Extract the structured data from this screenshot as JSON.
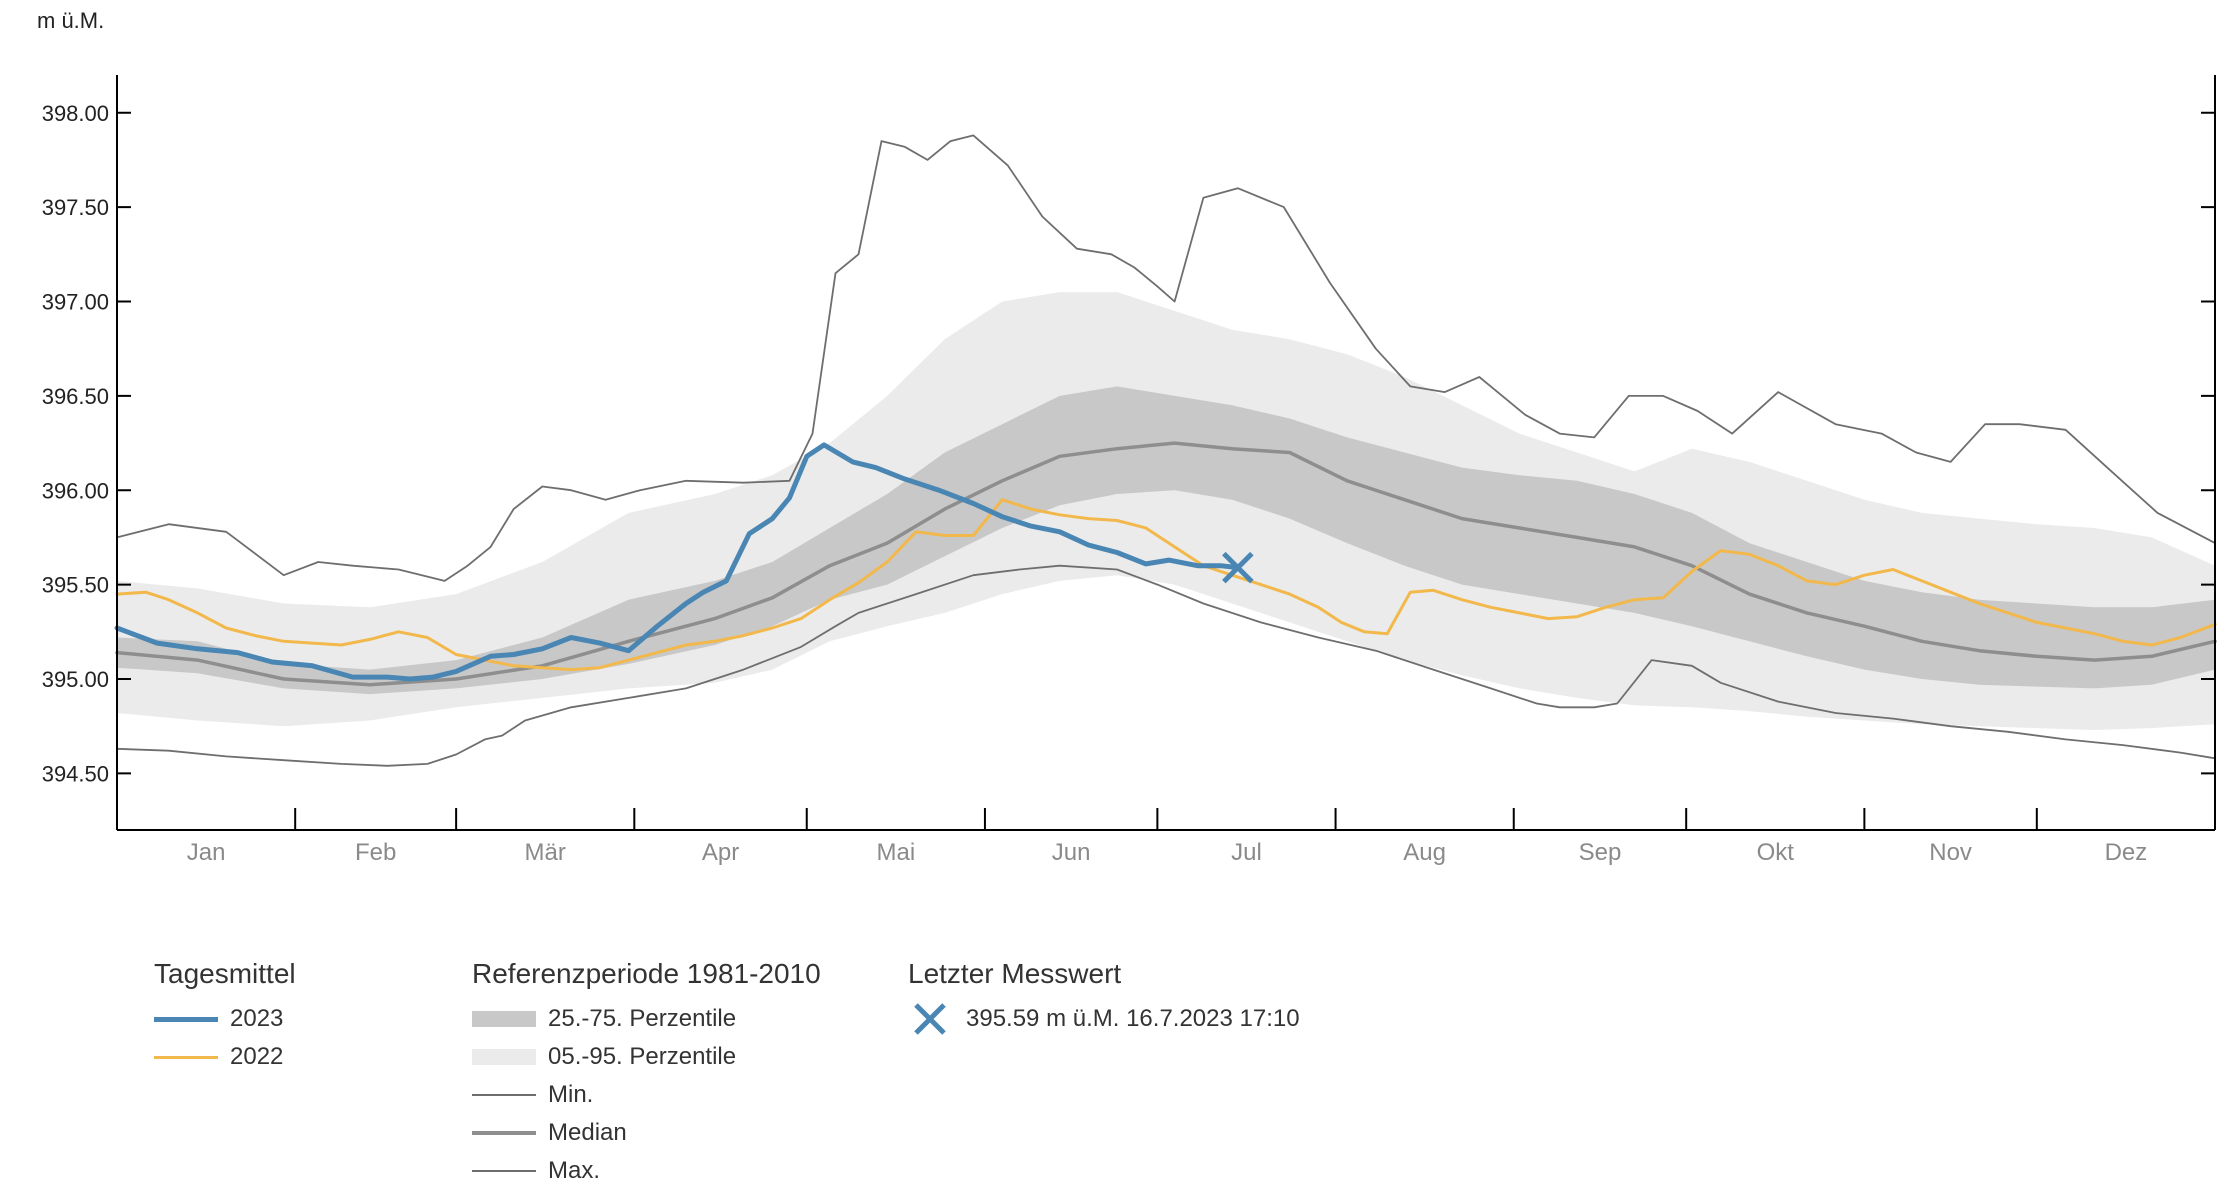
{
  "unit_label": "m ü.M.",
  "chart_data": {
    "type": "line",
    "ylabel": "m ü.M.",
    "ylim": [
      394.2,
      398.2
    ],
    "yticks": [
      "398.00",
      "397.50",
      "397.00",
      "396.50",
      "396.00",
      "395.50",
      "395.00",
      "394.50"
    ],
    "ytick_values": [
      398.0,
      397.5,
      397.0,
      396.5,
      396.0,
      395.5,
      395.0,
      394.5
    ],
    "x_unit": "day of year",
    "xlim": [
      1,
      366
    ],
    "months": [
      "Jan",
      "Feb",
      "Mär",
      "Apr",
      "Mai",
      "Jun",
      "Jul",
      "Aug",
      "Sep",
      "Okt",
      "Nov",
      "Dez"
    ],
    "month_starts": [
      1,
      32,
      60,
      91,
      121,
      152,
      182,
      213,
      244,
      274,
      305,
      335,
      366
    ],
    "grid": false,
    "series": [
      {
        "name": "2023",
        "role": "line",
        "color": "#4a86b3",
        "x": [
          1,
          8,
          15,
          22,
          28,
          35,
          42,
          48,
          52,
          56,
          60,
          66,
          70,
          75,
          80,
          85,
          90,
          95,
          100,
          103,
          107,
          111,
          115,
          118,
          121,
          124,
          129,
          133,
          138,
          144,
          150,
          155,
          160,
          165,
          170,
          175,
          180,
          184,
          189,
          193,
          196
        ],
        "y": [
          395.27,
          395.19,
          395.16,
          395.14,
          395.09,
          395.07,
          395.01,
          395.01,
          395.0,
          395.01,
          395.04,
          395.12,
          395.13,
          395.16,
          395.22,
          395.19,
          395.15,
          395.28,
          395.4,
          395.46,
          395.52,
          395.77,
          395.85,
          395.96,
          396.18,
          396.24,
          396.15,
          396.12,
          396.06,
          396.0,
          395.93,
          395.86,
          395.81,
          395.78,
          395.71,
          395.67,
          395.61,
          395.63,
          395.6,
          395.6,
          395.59
        ]
      },
      {
        "name": "2022",
        "role": "line",
        "color": "#f2b84b",
        "x": [
          1,
          6,
          10,
          15,
          20,
          25,
          30,
          35,
          40,
          45,
          50,
          55,
          60,
          65,
          70,
          75,
          80,
          85,
          90,
          95,
          100,
          105,
          110,
          115,
          120,
          125,
          130,
          135,
          140,
          145,
          150,
          155,
          160,
          165,
          170,
          175,
          180,
          185,
          190,
          195,
          200,
          205,
          210,
          214,
          218,
          222,
          226,
          230,
          235,
          240,
          245,
          250,
          255,
          260,
          265,
          270,
          275,
          280,
          285,
          290,
          295,
          300,
          305,
          310,
          315,
          320,
          325,
          330,
          335,
          340,
          345,
          350,
          355,
          360,
          366
        ],
        "y": [
          395.45,
          395.46,
          395.42,
          395.35,
          395.27,
          395.23,
          395.2,
          395.19,
          395.18,
          395.21,
          395.25,
          395.22,
          395.13,
          395.1,
          395.07,
          395.06,
          395.05,
          395.06,
          395.1,
          395.14,
          395.18,
          395.2,
          395.23,
          395.27,
          395.32,
          395.42,
          395.51,
          395.62,
          395.78,
          395.76,
          395.76,
          395.95,
          395.9,
          395.87,
          395.85,
          395.84,
          395.8,
          395.7,
          395.6,
          395.55,
          395.5,
          395.45,
          395.38,
          395.3,
          395.25,
          395.24,
          395.46,
          395.47,
          395.42,
          395.38,
          395.35,
          395.32,
          395.33,
          395.38,
          395.42,
          395.43,
          395.57,
          395.68,
          395.66,
          395.6,
          395.52,
          395.5,
          395.55,
          395.58,
          395.52,
          395.46,
          395.4,
          395.35,
          395.3,
          395.27,
          395.24,
          395.2,
          395.18,
          395.22,
          395.29
        ]
      },
      {
        "name": "Median",
        "role": "line",
        "color": "#8e8e8e",
        "x": [
          1,
          15,
          30,
          45,
          60,
          75,
          90,
          105,
          115,
          125,
          135,
          145,
          155,
          165,
          175,
          185,
          195,
          205,
          215,
          225,
          235,
          245,
          255,
          265,
          275,
          285,
          295,
          305,
          315,
          325,
          335,
          345,
          355,
          366
        ],
        "y": [
          395.14,
          395.1,
          395.0,
          394.97,
          395.0,
          395.07,
          395.2,
          395.32,
          395.43,
          395.6,
          395.72,
          395.9,
          396.05,
          396.18,
          396.22,
          396.25,
          396.22,
          396.2,
          396.05,
          395.95,
          395.85,
          395.8,
          395.75,
          395.7,
          395.6,
          395.45,
          395.35,
          395.28,
          395.2,
          395.15,
          395.12,
          395.1,
          395.12,
          395.2
        ]
      },
      {
        "name": "Min.",
        "role": "line",
        "color": "#6e6e6e",
        "x": [
          1,
          10,
          20,
          30,
          40,
          48,
          55,
          60,
          65,
          68,
          72,
          80,
          90,
          100,
          110,
          120,
          126,
          130,
          140,
          150,
          158,
          165,
          175,
          182,
          190,
          200,
          210,
          220,
          230,
          240,
          248,
          252,
          258,
          262,
          268,
          275,
          280,
          290,
          300,
          310,
          320,
          330,
          340,
          350,
          360,
          366
        ],
        "y": [
          394.63,
          394.62,
          394.59,
          394.57,
          394.55,
          394.54,
          394.55,
          394.6,
          394.68,
          394.7,
          394.78,
          394.85,
          394.9,
          394.95,
          395.05,
          395.17,
          395.28,
          395.35,
          395.45,
          395.55,
          395.58,
          395.6,
          395.58,
          395.5,
          395.4,
          395.3,
          395.22,
          395.15,
          395.05,
          394.95,
          394.87,
          394.85,
          394.85,
          394.87,
          395.1,
          395.07,
          394.98,
          394.88,
          394.82,
          394.79,
          394.75,
          394.72,
          394.68,
          394.65,
          394.61,
          394.58
        ]
      },
      {
        "name": "Max.",
        "role": "line",
        "color": "#6e6e6e",
        "x": [
          1,
          10,
          20,
          30,
          36,
          42,
          50,
          58,
          62,
          66,
          70,
          75,
          80,
          86,
          92,
          100,
          110,
          118,
          122,
          126,
          130,
          134,
          138,
          142,
          146,
          150,
          156,
          162,
          168,
          174,
          178,
          182,
          185,
          190,
          196,
          204,
          212,
          220,
          226,
          232,
          238,
          246,
          252,
          258,
          264,
          270,
          276,
          282,
          290,
          300,
          308,
          314,
          320,
          326,
          332,
          340,
          348,
          356,
          366
        ],
        "y": [
          395.75,
          395.82,
          395.78,
          395.55,
          395.62,
          395.6,
          395.58,
          395.52,
          395.6,
          395.7,
          395.9,
          396.02,
          396.0,
          395.95,
          396.0,
          396.05,
          396.04,
          396.05,
          396.3,
          397.15,
          397.25,
          397.85,
          397.82,
          397.75,
          397.85,
          397.88,
          397.72,
          397.45,
          397.28,
          397.25,
          397.18,
          397.08,
          397.0,
          397.55,
          397.6,
          397.5,
          397.1,
          396.75,
          396.55,
          396.52,
          396.6,
          396.4,
          396.3,
          396.28,
          396.5,
          396.5,
          396.42,
          396.3,
          396.52,
          396.35,
          396.3,
          396.2,
          396.15,
          396.35,
          396.35,
          396.32,
          396.1,
          395.88,
          395.72
        ]
      },
      {
        "name": "25.-75. Perzentile",
        "role": "band",
        "color": "#c8c8c8",
        "x": [
          1,
          15,
          30,
          45,
          60,
          75,
          90,
          105,
          115,
          125,
          135,
          145,
          155,
          165,
          175,
          185,
          195,
          205,
          215,
          225,
          235,
          245,
          255,
          265,
          275,
          285,
          295,
          305,
          315,
          325,
          335,
          345,
          355,
          366
        ],
        "lower": [
          395.06,
          395.03,
          394.95,
          394.92,
          394.95,
          395.0,
          395.08,
          395.18,
          395.28,
          395.42,
          395.5,
          395.65,
          395.8,
          395.92,
          395.98,
          396.0,
          395.95,
          395.85,
          395.72,
          395.6,
          395.5,
          395.45,
          395.4,
          395.35,
          395.28,
          395.2,
          395.12,
          395.05,
          395.0,
          394.97,
          394.96,
          394.95,
          394.97,
          395.05
        ],
        "upper": [
          395.22,
          395.2,
          395.08,
          395.05,
          395.1,
          395.22,
          395.42,
          395.52,
          395.62,
          395.8,
          395.98,
          396.2,
          396.35,
          396.5,
          396.55,
          396.5,
          396.45,
          396.38,
          396.28,
          396.2,
          396.12,
          396.08,
          396.05,
          395.98,
          395.88,
          395.72,
          395.62,
          395.52,
          395.46,
          395.42,
          395.4,
          395.38,
          395.38,
          395.42
        ]
      },
      {
        "name": "05.-95. Perzentile",
        "role": "band",
        "color": "#ebebeb",
        "x": [
          1,
          15,
          30,
          45,
          60,
          75,
          90,
          105,
          115,
          125,
          135,
          145,
          155,
          165,
          175,
          185,
          195,
          205,
          215,
          225,
          235,
          245,
          255,
          265,
          275,
          285,
          295,
          305,
          315,
          325,
          335,
          345,
          355,
          366
        ],
        "lower": [
          394.82,
          394.78,
          394.75,
          394.78,
          394.85,
          394.9,
          394.95,
          394.98,
          395.05,
          395.2,
          395.28,
          395.35,
          395.45,
          395.52,
          395.55,
          395.5,
          395.4,
          395.3,
          395.2,
          395.1,
          395.02,
          394.95,
          394.9,
          394.86,
          394.85,
          394.83,
          394.8,
          394.78,
          394.76,
          394.75,
          394.74,
          394.73,
          394.74,
          394.76
        ],
        "upper": [
          395.52,
          395.48,
          395.4,
          395.38,
          395.45,
          395.62,
          395.88,
          395.98,
          396.08,
          396.25,
          396.5,
          396.8,
          397.0,
          397.05,
          397.05,
          396.95,
          396.85,
          396.8,
          396.72,
          396.6,
          396.45,
          396.3,
          396.2,
          396.1,
          396.22,
          396.15,
          396.05,
          395.95,
          395.88,
          395.85,
          395.82,
          395.8,
          395.75,
          395.6
        ]
      }
    ],
    "last_value": {
      "x": 196,
      "y": 395.59,
      "color": "#4a86b3"
    }
  },
  "legend": {
    "daily": {
      "title": "Tagesmittel",
      "items": [
        {
          "label": "2023",
          "color": "#4a86b3"
        },
        {
          "label": "2022",
          "color": "#f2b84b"
        }
      ]
    },
    "reference": {
      "title": "Referenzperiode 1981-2010",
      "items": [
        {
          "label": "25.-75. Perzentile",
          "color": "#c8c8c8"
        },
        {
          "label": "05.-95. Perzentile",
          "color": "#ebebeb"
        },
        {
          "label": "Min.",
          "color": "#6e6e6e"
        },
        {
          "label": "Median",
          "color": "#8e8e8e"
        },
        {
          "label": "Max.",
          "color": "#6e6e6e"
        }
      ]
    },
    "last": {
      "title": "Letzter Messwert",
      "value_text": "395.59 m ü.M. 16.7.2023 17:10"
    }
  }
}
